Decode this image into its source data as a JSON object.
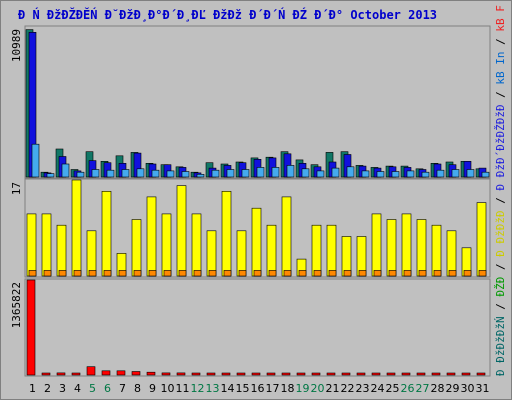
{
  "title": "Đ Ń ĐžĐŽĐĚŃ Đ˘ĐžĐ¸Đ°Đ´Đ¸ĐĽ ĐžĐž Đ´Đ´Ń ĐŹ Đ´Đ° October 2013",
  "legend": [
    {
      "text": "Đ ĐžĐžĐžŃ",
      "color": "#006666"
    },
    {
      "text": "/",
      "color": "#000000"
    },
    {
      "text": "ĐŽĐ",
      "color": "#009900"
    },
    {
      "text": "/",
      "color": "#000000"
    },
    {
      "text": "Đ ĐžĐžĐ",
      "color": "#cccc00"
    },
    {
      "text": "/",
      "color": "#000000"
    },
    {
      "text": "Đ ĐžĐ´ĐžĐŽĐžĐ",
      "color": "#2222dd"
    },
    {
      "text": "/",
      "color": "#000000"
    },
    {
      "text": "kB In",
      "color": "#0066cc"
    },
    {
      "text": "/",
      "color": "#000000"
    },
    {
      "text": "kB F",
      "color": "#ee2222"
    }
  ],
  "chart_data": {
    "type": "bar",
    "categories": [
      "1",
      "2",
      "3",
      "4",
      "5",
      "6",
      "7",
      "8",
      "9",
      "10",
      "11",
      "12",
      "13",
      "14",
      "15",
      "16",
      "17",
      "18",
      "19",
      "20",
      "21",
      "22",
      "23",
      "24",
      "25",
      "26",
      "27",
      "28",
      "29",
      "30",
      "31"
    ],
    "weekend_days": [
      "5",
      "6",
      "12",
      "13",
      "19",
      "20",
      "26",
      "27"
    ],
    "colors": {
      "visits": "#117766",
      "pages": "#1111dd",
      "hits": "#44aaee",
      "files": "#ffff00",
      "avg": "#ff8800",
      "kb": "#ff0000",
      "weekday_label": "#000000",
      "weekend_label": "#007744"
    },
    "panels": [
      {
        "ymax_label": "10989",
        "ymax": 10989,
        "series": [
          {
            "key": "visits",
            "values": [
              10800,
              350,
              2050,
              550,
              1850,
              1150,
              1550,
              1800,
              1000,
              900,
              750,
              350,
              1050,
              950,
              1100,
              1400,
              1450,
              1850,
              1250,
              900,
              1800,
              1850,
              850,
              700,
              800,
              800,
              600,
              1000,
              1100,
              1150,
              600
            ]
          },
          {
            "key": "pages",
            "values": [
              10600,
              300,
              1500,
              450,
              1200,
              1050,
              1000,
              1750,
              950,
              900,
              700,
              300,
              650,
              850,
              1050,
              1300,
              1400,
              1700,
              1000,
              750,
              1100,
              1650,
              800,
              650,
              750,
              700,
              550,
              950,
              900,
              1150,
              650
            ]
          },
          {
            "key": "hits",
            "values": [
              2400,
              250,
              950,
              350,
              550,
              500,
              550,
              600,
              500,
              450,
              400,
              200,
              500,
              550,
              550,
              700,
              700,
              850,
              600,
              450,
              650,
              750,
              450,
              400,
              400,
              450,
              350,
              500,
              550,
              550,
              350
            ]
          }
        ]
      },
      {
        "ymax_label": "17",
        "ymax": 17,
        "series": [
          {
            "key": "files",
            "values": [
              11,
              11,
              9,
              17,
              8,
              15,
              4,
              10,
              14,
              11,
              16,
              11,
              8,
              15,
              8,
              12,
              9,
              14,
              3,
              9,
              9,
              7,
              7,
              11,
              10,
              11,
              10,
              9,
              8,
              5,
              13
            ]
          },
          {
            "key": "avg",
            "values": [
              1,
              1,
              1,
              1,
              1,
              1,
              1,
              1,
              1,
              1,
              1,
              1,
              1,
              1,
              1,
              1,
              1,
              1,
              1,
              1,
              1,
              1,
              1,
              1,
              1,
              1,
              1,
              1,
              1,
              1,
              1
            ]
          }
        ]
      },
      {
        "ymax_label": "1365822",
        "ymax": 1365822,
        "series": [
          {
            "key": "kb",
            "values": [
              1365822,
              20000,
              30000,
              25000,
              120000,
              60000,
              60000,
              50000,
              40000,
              30000,
              30000,
              20000,
              20000,
              25000,
              20000,
              20000,
              20000,
              25000,
              20000,
              15000,
              15000,
              20000,
              15000,
              15000,
              15000,
              15000,
              15000,
              15000,
              15000,
              15000,
              15000
            ]
          }
        ]
      }
    ]
  }
}
